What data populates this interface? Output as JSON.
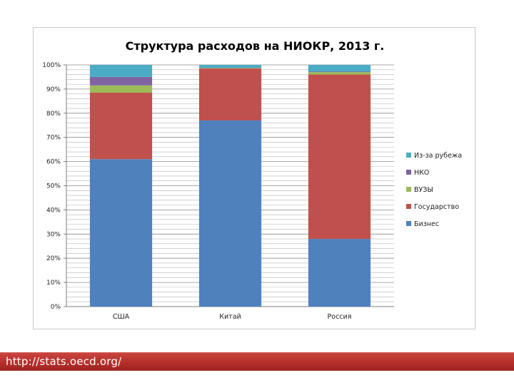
{
  "chart_data": {
    "type": "bar",
    "stacked": true,
    "percent_stacked": true,
    "title": "Структура расходов на НИОКР, 2013 г.",
    "xlabel": "",
    "ylabel": "",
    "categories": [
      "США",
      "Китай",
      "Россия"
    ],
    "ylim": [
      0,
      100
    ],
    "yticks": [
      "0%",
      "10%",
      "20%",
      "30%",
      "40%",
      "50%",
      "60%",
      "70%",
      "80%",
      "90%",
      "100%"
    ],
    "series": [
      {
        "name": "Бизнес",
        "color": "#4f81bd",
        "values": [
          61,
          77,
          28
        ]
      },
      {
        "name": "Государство",
        "color": "#c0504d",
        "values": [
          27.5,
          21.5,
          68
        ]
      },
      {
        "name": "ВУЗЫ",
        "color": "#9bbb59",
        "values": [
          3,
          0.2,
          1
        ]
      },
      {
        "name": "НКО",
        "color": "#8064a2",
        "values": [
          3.5,
          0.1,
          0.2
        ]
      },
      {
        "name": "Из-за рубежа",
        "color": "#4bacc6",
        "values": [
          5,
          1.2,
          2.8
        ]
      }
    ],
    "legend_order": [
      "Из-за рубежа",
      "НКО",
      "ВУЗЫ",
      "Государство",
      "Бизнес"
    ],
    "legend_position": "right",
    "grid": true
  },
  "footer": {
    "source_link": "http://stats.oecd.org/"
  }
}
